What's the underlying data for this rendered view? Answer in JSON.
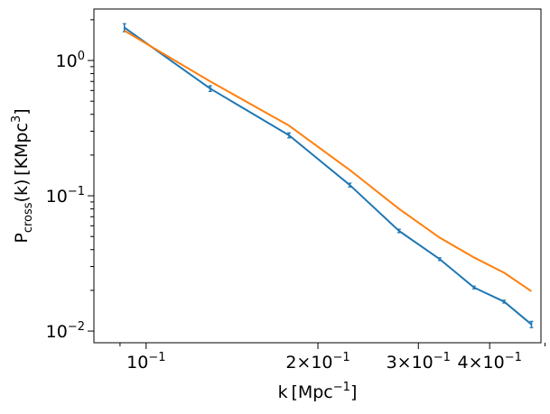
{
  "chart_data": {
    "type": "line",
    "xscale": "log",
    "yscale": "log",
    "xlim": [
      0.081,
      0.492
    ],
    "ylim": [
      0.0082,
      2.4
    ],
    "xlabel_parts": {
      "main": "k [Mpc",
      "sup": "−1",
      "close": "]"
    },
    "ylabel_parts": {
      "main": "P",
      "sub": "cross",
      "mid": "(k) [KMpc",
      "sup": "3",
      "close": "]"
    },
    "x_ticks": [
      {
        "value": 0.1,
        "base": "10",
        "exp": "−1"
      },
      {
        "value": 0.2,
        "base": "2×10",
        "exp": "−1"
      },
      {
        "value": 0.3,
        "base": "3×10",
        "exp": "−1"
      },
      {
        "value": 0.4,
        "base": "4×10",
        "exp": "−1"
      }
    ],
    "x_minor_ticks": [
      0.09,
      0.5
    ],
    "y_ticks": [
      {
        "value": 0.01,
        "base": "10",
        "exp": "−2"
      },
      {
        "value": 0.1,
        "base": "10",
        "exp": "−1"
      },
      {
        "value": 1,
        "base": "10",
        "exp": "0"
      }
    ],
    "y_minor_ticks": [
      0.02,
      0.03,
      0.04,
      0.05,
      0.06,
      0.07,
      0.08,
      0.09,
      0.2,
      0.3,
      0.4,
      0.5,
      0.6,
      0.7,
      0.8,
      0.9,
      2
    ],
    "series": [
      {
        "color": "#1f77b4",
        "x": [
          0.0916,
          0.1295,
          0.178,
          0.2275,
          0.2775,
          0.327,
          0.3755,
          0.424,
          0.4735
        ],
        "y": [
          1.75,
          0.62,
          0.28,
          0.12,
          0.055,
          0.034,
          0.021,
          0.0165,
          0.0112
        ],
        "yerr": [
          0.12,
          0.03,
          0.012,
          0.004,
          0.0016,
          0.0008,
          0.0005,
          0.0004,
          0.0006
        ]
      },
      {
        "color": "#ff7f0e",
        "x": [
          0.0916,
          0.1295,
          0.178,
          0.2275,
          0.2775,
          0.327,
          0.3755,
          0.424,
          0.4735
        ],
        "y": [
          1.66,
          0.7,
          0.33,
          0.155,
          0.08,
          0.049,
          0.035,
          0.027,
          0.0197
        ]
      }
    ]
  }
}
